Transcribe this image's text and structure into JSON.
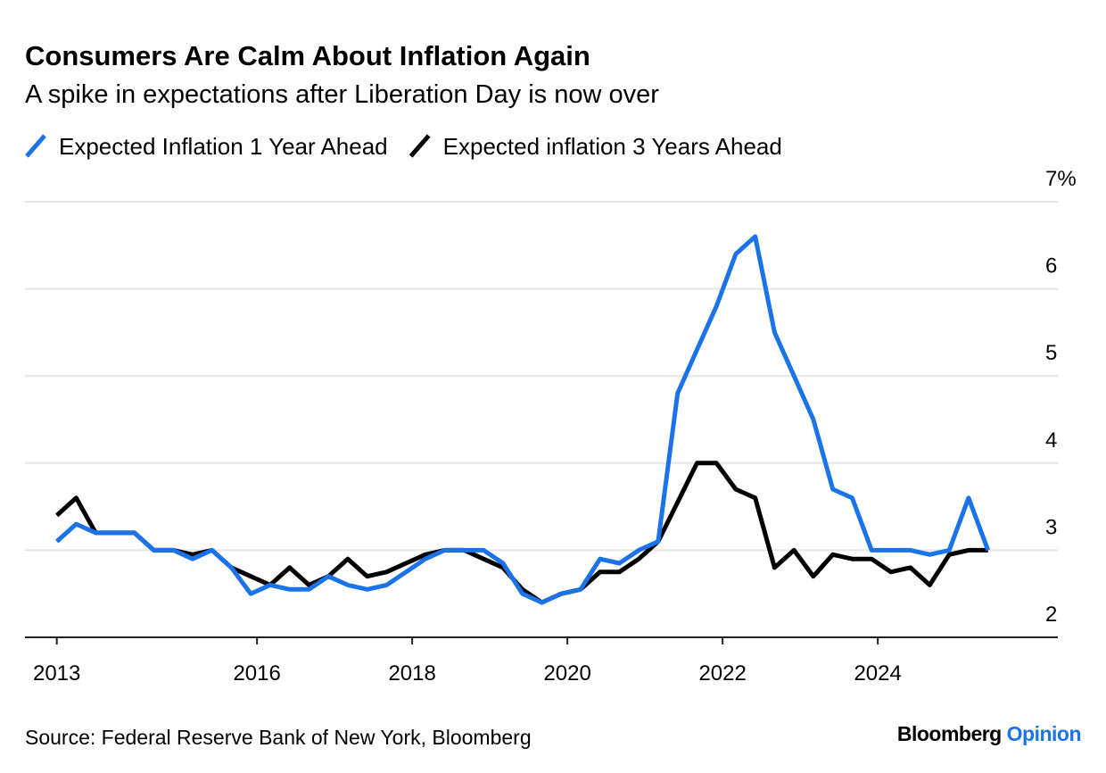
{
  "chart_data": {
    "type": "line",
    "title": "Consumers Are Calm About Inflation Again",
    "subtitle": "A spike in expectations after Liberation Day is now over",
    "source": "Source: Federal Reserve Bank of New York, Bloomberg",
    "brand": {
      "name": "Bloomberg",
      "section": "Opinion"
    },
    "x": [
      2013.42,
      2013.67,
      2013.92,
      2014.17,
      2014.42,
      2014.67,
      2014.92,
      2015.17,
      2015.42,
      2015.67,
      2015.92,
      2016.17,
      2016.42,
      2016.67,
      2016.92,
      2017.17,
      2017.42,
      2017.67,
      2017.92,
      2018.17,
      2018.42,
      2018.67,
      2018.92,
      2019.17,
      2019.42,
      2019.67,
      2019.92,
      2020.17,
      2020.42,
      2020.67,
      2020.92,
      2021.17,
      2021.42,
      2021.67,
      2021.92,
      2022.17,
      2022.42,
      2022.67,
      2022.92,
      2023.17,
      2023.42,
      2023.67,
      2023.92,
      2024.17,
      2024.42,
      2024.67,
      2024.92,
      2025.17,
      2025.42
    ],
    "series": [
      {
        "name": "Expected Inflation 1 Year Ahead",
        "color": "#1a73e8",
        "values": [
          3.1,
          3.3,
          3.2,
          3.2,
          3.2,
          3.0,
          3.0,
          2.9,
          3.0,
          2.8,
          2.5,
          2.6,
          2.55,
          2.55,
          2.7,
          2.6,
          2.55,
          2.6,
          2.75,
          2.9,
          3.0,
          3.0,
          3.0,
          2.85,
          2.5,
          2.4,
          2.5,
          2.55,
          2.9,
          2.85,
          3.0,
          3.1,
          4.8,
          5.3,
          5.8,
          6.4,
          6.6,
          5.5,
          5.0,
          4.5,
          3.7,
          3.6,
          3.0,
          3.0,
          3.0,
          2.95,
          3.0,
          3.6,
          3.0
        ]
      },
      {
        "name": "Expected inflation 3 Years Ahead",
        "color": "#000000",
        "values": [
          3.4,
          3.6,
          3.2,
          3.2,
          3.2,
          3.0,
          3.0,
          2.95,
          3.0,
          2.8,
          2.7,
          2.6,
          2.8,
          2.6,
          2.7,
          2.9,
          2.7,
          2.75,
          2.85,
          2.95,
          3.0,
          3.0,
          2.9,
          2.8,
          2.55,
          2.4,
          2.5,
          2.55,
          2.75,
          2.75,
          2.9,
          3.1,
          3.55,
          4.0,
          4.0,
          3.7,
          3.6,
          2.8,
          3.0,
          2.7,
          2.95,
          2.9,
          2.9,
          2.75,
          2.8,
          2.6,
          2.95,
          3.0,
          3.0
        ]
      }
    ],
    "xlim": [
      2013.01,
      2026.32
    ],
    "xticks": [
      {
        "value": 2013.42,
        "label": "2013"
      },
      2016,
      2018,
      2020,
      2022,
      2024
    ],
    "ylim": [
      2,
      7
    ],
    "yticks": [
      2,
      3,
      4,
      5,
      6,
      {
        "value": 7,
        "label": "7%"
      }
    ],
    "grid": true
  }
}
